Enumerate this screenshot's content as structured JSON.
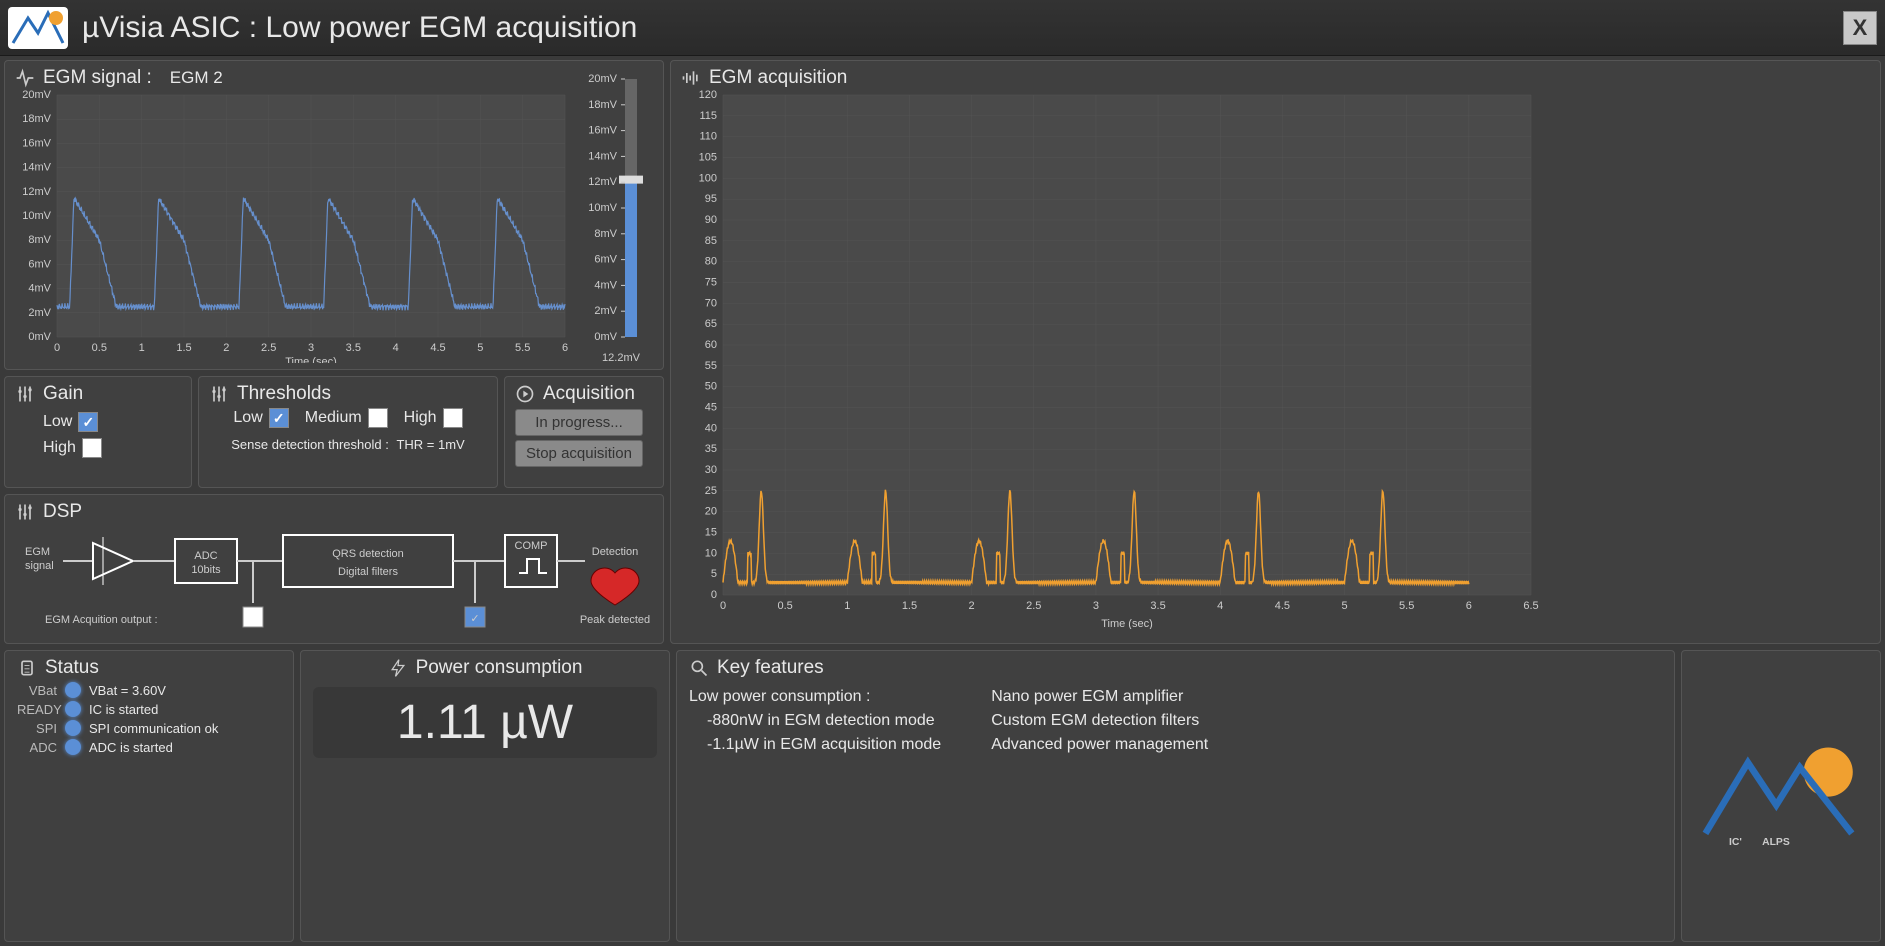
{
  "title": "µVisia ASIC : Low power EGM acquisition",
  "close_label": "X",
  "signal_panel": {
    "title": "EGM signal :",
    "selected": "EGM 2",
    "xlabel": "Time (sec)",
    "ylim": [
      0,
      20
    ],
    "yunit": "mV",
    "xlim": [
      0,
      6
    ],
    "xtick_step": 0.5,
    "ytick_step": 2,
    "line_color": "#668fcc",
    "bg_color": "#4a4a4a",
    "grid_color": "#555555",
    "slider": {
      "ticks_mv": [
        0,
        2,
        4,
        6,
        8,
        10,
        12,
        14,
        16,
        18,
        20
      ],
      "value_label": "12.2mV",
      "value": 12.2,
      "max": 20,
      "bar_color": "#5b8fd6",
      "handle_color": "#dddddd"
    },
    "waveform": {
      "baseline_mv": 2.5,
      "peak_mv": 11.5,
      "secondary_mv": 8.0,
      "period_sec": 1.0,
      "noise_mv": 0.6
    }
  },
  "gain_panel": {
    "title": "Gain",
    "options": [
      {
        "label": "Low",
        "checked": true
      },
      {
        "label": "High",
        "checked": false
      }
    ]
  },
  "thresholds_panel": {
    "title": "Thresholds",
    "options": [
      {
        "label": "Low",
        "checked": true
      },
      {
        "label": "Medium",
        "checked": false
      },
      {
        "label": "High",
        "checked": false
      }
    ],
    "sense_label": "Sense detection threshold :",
    "sense_value": "THR = 1mV"
  },
  "acquisition_panel": {
    "title": "Acquisition",
    "btn_progress": "In progress...",
    "btn_stop": "Stop acquisition"
  },
  "dsp_panel": {
    "title": "DSP",
    "input_label": "EGM\nsignal",
    "adc_label": "ADC",
    "adc_sub": "10bits",
    "qrs_label": "QRS detection",
    "qrs_sub": "Digital filters",
    "comp_label": "COMP",
    "out_label": "Detection",
    "peak_label": "Peak detected",
    "egm_out_label": "EGM Acquition output :",
    "checks": [
      {
        "checked": false
      },
      {
        "checked": true
      }
    ]
  },
  "acq_chart": {
    "title": "EGM acquisition",
    "xlabel": "Time (sec)",
    "xlim": [
      0,
      6.5
    ],
    "xtick_step": 0.5,
    "ylim": [
      0,
      120
    ],
    "ytick_step": 5,
    "line_color": "#f0a030",
    "bg_color": "#4a4a4a",
    "grid_color": "#555555",
    "waveform": {
      "baseline": 3,
      "peak": 25,
      "pre_peak": 10,
      "period_sec": 1.0
    }
  },
  "status_panel": {
    "title": "Status",
    "rows": [
      {
        "tag": "VBat",
        "text": "VBat = 3.60V"
      },
      {
        "tag": "READY",
        "text": "IC is started"
      },
      {
        "tag": "SPI",
        "text": "SPI communication ok"
      },
      {
        "tag": "ADC",
        "text": "ADC is started"
      }
    ],
    "led_color": "#5b8fd6"
  },
  "power_panel": {
    "title": "Power consumption",
    "value": "1.11 µW"
  },
  "key_features": {
    "title": "Key features",
    "col1_title": "Low power consumption :",
    "col1_items": [
      "-880nW in EGM detection mode",
      "-1.1µW in EGM acquisition mode"
    ],
    "col2_items": [
      "Nano power EGM amplifier",
      "Custom EGM detection filters",
      "Advanced power management"
    ]
  },
  "logo_text": "IC'ALPS",
  "colors": {
    "panel_bg": "#404040",
    "accent_blue": "#5b8fd6",
    "accent_orange": "#f0a030",
    "heart_red": "#d62828"
  }
}
